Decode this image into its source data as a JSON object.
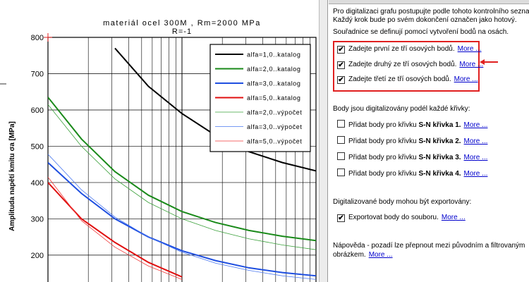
{
  "chart_data": {
    "type": "line",
    "title": "materiál ocel 300M , Rm=2000 MPa",
    "subtitle": "R=-1",
    "ylabel": "Amplituda napětí kmitu σa [MPa]",
    "categories": [
      null,
      null,
      null,
      null,
      null,
      null,
      null,
      null,
      null
    ],
    "ylim": [
      126,
      800
    ],
    "yticks": [
      200,
      300,
      400,
      500,
      600,
      700,
      800
    ],
    "grid": true,
    "series": [
      {
        "name": "alfa=1,0..katalog",
        "color": "#000000",
        "line_width": 2,
        "values": [
          null,
          null,
          770,
          665,
          590,
          530,
          485,
          455,
          432
        ]
      },
      {
        "name": "alfa=2,0..katalog",
        "color": "#1a8a1a",
        "line_width": 2,
        "values": [
          635,
          520,
          430,
          365,
          320,
          290,
          268,
          252,
          240
        ]
      },
      {
        "name": "alfa=3,0..katalog",
        "color": "#1f4fe0",
        "line_width": 2,
        "values": [
          455,
          370,
          300,
          250,
          212,
          185,
          165,
          152,
          143
        ]
      },
      {
        "name": "alfa=5,0..katalog",
        "color": "#e01010",
        "line_width": 2,
        "values": [
          400,
          300,
          235,
          180,
          140,
          null,
          null,
          null,
          null
        ]
      },
      {
        "name": "alfa=2,0..výpočet",
        "color": "#3aa03a",
        "line_width": 0.8,
        "values": [
          615,
          500,
          410,
          345,
          300,
          268,
          245,
          228,
          215
        ]
      },
      {
        "name": "alfa=3,0..výpočet",
        "color": "#4a78f0",
        "line_width": 0.8,
        "values": [
          478,
          380,
          305,
          250,
          208,
          178,
          158,
          143,
          133
        ]
      },
      {
        "name": "alfa=5,0..výpočet",
        "color": "#f03a3a",
        "line_width": 0.8,
        "values": [
          415,
          295,
          222,
          170,
          133,
          null,
          null,
          null,
          null
        ]
      }
    ]
  },
  "panel": {
    "intro": [
      "Pro digitalizaci grafu postupujte podle tohoto kontrolního seznamu.",
      "Každý krok bude po svém dokončení označen jako hotový."
    ],
    "axes_heading": "Souřadnice se definují pomocí vytvoření bodů na osách.",
    "axis_steps": [
      {
        "checked": true,
        "text": "Zadejte první ze tří osových bodů.",
        "link": "More ..."
      },
      {
        "checked": true,
        "text": "Zadejte druhý ze tří osových bodů.",
        "link": "More ..."
      },
      {
        "checked": true,
        "text": "Zadejte třetí ze tří osových bodů.",
        "link": "More ..."
      }
    ],
    "curves_heading": "Body jsou digitalizovány podél každé křivky:",
    "curve_steps": [
      {
        "checked": false,
        "text": "Přidat body pro křivku",
        "curve": "S-N křivka 1.",
        "link": "More ..."
      },
      {
        "checked": false,
        "text": "Přidat body pro křivku",
        "curve": "S-N křivka 2.",
        "link": "More ..."
      },
      {
        "checked": false,
        "text": "Přidat body pro křivku",
        "curve": "S-N křivka 3.",
        "link": "More ..."
      },
      {
        "checked": false,
        "text": "Přidat body pro křivku",
        "curve": "S-N křivka 4.",
        "link": "More ..."
      }
    ],
    "export_heading": "Digitalizované body mohou být exportovány:",
    "export_step": {
      "checked": true,
      "text": "Exportovat body do souboru.",
      "link": "More ..."
    },
    "hint": [
      "Nápověda - pozadí lze přepnout mezi původním a filtrovaným",
      "obrázkem."
    ],
    "hint_link": "More ..."
  }
}
